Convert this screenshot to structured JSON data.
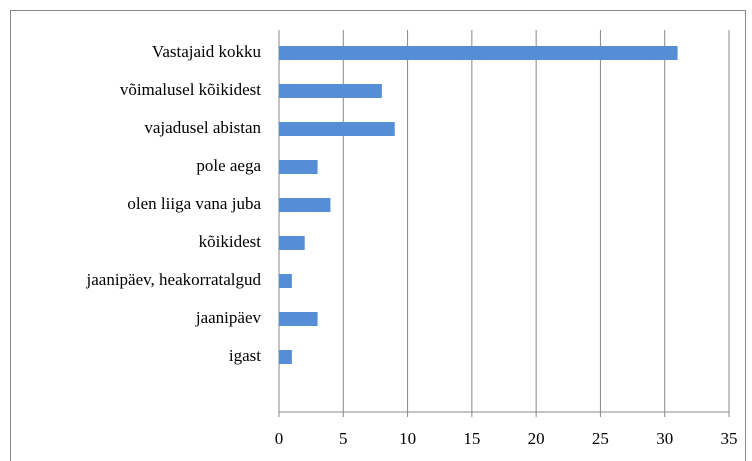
{
  "chart_data": {
    "type": "bar",
    "orientation": "horizontal",
    "categories": [
      "Vastajaid kokku",
      "võimalusel kõikidest",
      "vajadusel abistan",
      "pole aega",
      "olen liiga vana juba",
      "kõikidest",
      "jaanipäev, heakorratalgud",
      "jaanipäev",
      "igast"
    ],
    "values": [
      31,
      8,
      9,
      3,
      4,
      2,
      1,
      3,
      1
    ],
    "color": "#558ed5",
    "xlim": [
      0,
      35
    ],
    "xticks": [
      0,
      5,
      10,
      15,
      20,
      25,
      30,
      35
    ],
    "grid": true
  }
}
